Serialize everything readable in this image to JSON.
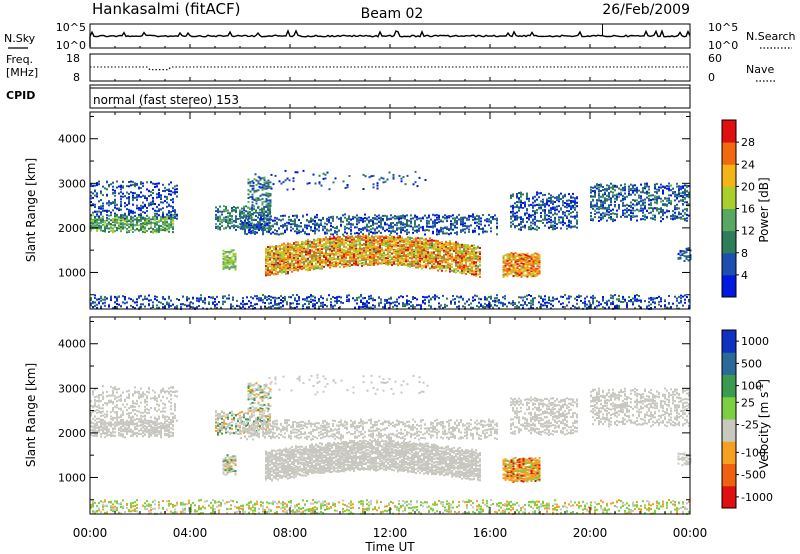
{
  "header": {
    "station": "Hankasalmi (fitACF)",
    "beam": "Beam 02",
    "date": "26/Feb/2009"
  },
  "chart_data": [
    {
      "type": "line",
      "panel": "noise",
      "left_label": "N.Sky",
      "right_label": "N.Search",
      "left_ticks": [
        "10^5",
        "10^0"
      ],
      "right_ticks": [
        "10^5",
        "10^0"
      ],
      "x_range_hours": [
        0,
        24
      ]
    },
    {
      "type": "line",
      "panel": "frequency",
      "left_label": [
        "Freq.",
        "[MHz]"
      ],
      "right_label": "Nave",
      "left_ticks": [
        "18",
        "8"
      ],
      "right_ticks": [
        "60",
        "0"
      ],
      "ylim": [
        8,
        18
      ],
      "right_ylim": [
        0,
        60
      ]
    },
    {
      "type": "table",
      "panel": "cpid",
      "label": "CPID",
      "mode_text": "normal (fast stereo) 153"
    },
    {
      "type": "heatmap",
      "panel": "power",
      "ylabel": "Slant Range [km]",
      "yticks": [
        "1000",
        "2000",
        "3000",
        "4000"
      ],
      "ylim": [
        180,
        4600
      ],
      "xlim": [
        0,
        24
      ],
      "colorbar": {
        "label": "Power [dB]",
        "ticks": [
          "4",
          "8",
          "12",
          "16",
          "20",
          "24",
          "28"
        ],
        "colors": [
          "#0018e0",
          "#1c4fb0",
          "#2e7d5a",
          "#57a862",
          "#a8cf2c",
          "#f2b416",
          "#f26a10",
          "#e01010"
        ]
      }
    },
    {
      "type": "heatmap",
      "panel": "velocity",
      "ylabel": "Slant Range [km]",
      "yticks": [
        "1000",
        "2000",
        "3000",
        "4000"
      ],
      "ylim": [
        180,
        4600
      ],
      "xlim": [
        0,
        24
      ],
      "colorbar": {
        "label": "Velocity [m s",
        "label_superscript": "-1",
        "label_close": "]",
        "ticks": [
          "1000",
          "500",
          "100",
          "25",
          "-25",
          "-100",
          "-500",
          "-1000"
        ],
        "colors": [
          "#1030c0",
          "#2a6a96",
          "#3a9a50",
          "#7ccf40",
          "#c8c8c0",
          "#f5a020",
          "#f06010",
          "#e01010"
        ]
      }
    }
  ],
  "x_axis": {
    "label": "Time UT",
    "ticks": [
      "00:00",
      "04:00",
      "08:00",
      "12:00",
      "16:00",
      "20:00",
      "00:00"
    ]
  }
}
